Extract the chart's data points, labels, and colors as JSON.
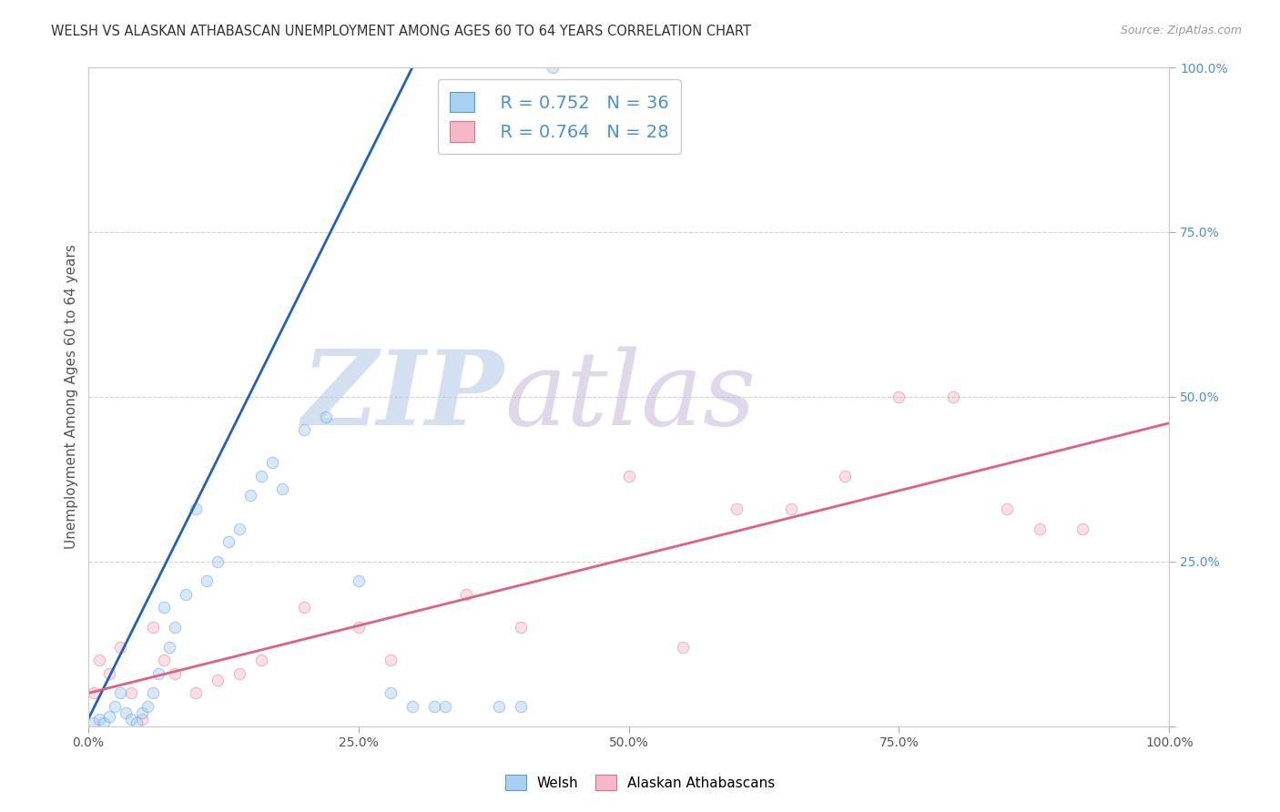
{
  "title": "WELSH VS ALASKAN ATHABASCAN UNEMPLOYMENT AMONG AGES 60 TO 64 YEARS CORRELATION CHART",
  "source": "Source: ZipAtlas.com",
  "ylabel": "Unemployment Among Ages 60 to 64 years",
  "welsh_color": "#a8d0f0",
  "welsh_edge_color": "#5b9bd5",
  "alaskan_color": "#f5b8c8",
  "alaskan_edge_color": "#e07090",
  "welsh_line_color": "#2060c0",
  "alaskan_line_color": "#e06080",
  "background_color": "#ffffff",
  "grid_color": "#cccccc",
  "tick_color_blue": "#4a90d9",
  "title_color": "#333333",
  "source_color": "#999999",
  "welsh_x": [
    0.5,
    1.0,
    1.5,
    2.0,
    2.5,
    3.0,
    3.5,
    4.0,
    4.5,
    5.0,
    5.5,
    6.0,
    6.5,
    7.0,
    7.5,
    8.0,
    9.0,
    10.0,
    11.0,
    12.0,
    13.0,
    14.0,
    15.0,
    16.0,
    17.0,
    18.0,
    20.0,
    22.0,
    25.0,
    28.0,
    30.0,
    32.0,
    33.0,
    38.0,
    40.0,
    43.0
  ],
  "welsh_y": [
    0.5,
    1.0,
    0.5,
    1.5,
    3.0,
    5.0,
    2.0,
    1.0,
    0.5,
    2.0,
    3.0,
    5.0,
    8.0,
    18.0,
    12.0,
    15.0,
    20.0,
    33.0,
    22.0,
    25.0,
    28.0,
    30.0,
    35.0,
    38.0,
    40.0,
    36.0,
    45.0,
    47.0,
    22.0,
    5.0,
    3.0,
    3.0,
    3.0,
    3.0,
    3.0,
    100.0
  ],
  "alaskan_x": [
    0.5,
    1.0,
    2.0,
    3.0,
    4.0,
    5.0,
    6.0,
    7.0,
    8.0,
    10.0,
    12.0,
    14.0,
    16.0,
    20.0,
    25.0,
    28.0,
    35.0,
    40.0,
    50.0,
    55.0,
    60.0,
    65.0,
    70.0,
    75.0,
    80.0,
    85.0,
    88.0,
    92.0
  ],
  "alaskan_y": [
    5.0,
    10.0,
    8.0,
    12.0,
    5.0,
    1.0,
    15.0,
    10.0,
    8.0,
    5.0,
    7.0,
    8.0,
    10.0,
    18.0,
    15.0,
    10.0,
    20.0,
    15.0,
    38.0,
    12.0,
    33.0,
    33.0,
    38.0,
    50.0,
    50.0,
    33.0,
    30.0,
    30.0
  ],
  "welsh_trend_x0": 0.0,
  "welsh_trend_y0": 1.0,
  "welsh_trend_x1": 30.0,
  "welsh_trend_y1": 100.0,
  "alaskan_trend_x0": 0.0,
  "alaskan_trend_y0": 5.0,
  "alaskan_trend_x1": 100.0,
  "alaskan_trend_y1": 46.0,
  "title_fontsize": 10.5,
  "label_fontsize": 11,
  "tick_fontsize": 10,
  "legend_fontsize": 14,
  "source_fontsize": 9,
  "marker_size": 80,
  "marker_alpha": 0.45,
  "xlim": [
    0,
    100
  ],
  "ylim": [
    0,
    100
  ],
  "xticks": [
    0,
    25,
    50,
    75,
    100
  ],
  "yticks": [
    0,
    25,
    50,
    75,
    100
  ],
  "xticklabels": [
    "0.0%",
    "25.0%",
    "50.0%",
    "75.0%",
    "100.0%"
  ],
  "right_yticklabels": [
    "",
    "25.0%",
    "50.0%",
    "75.0%",
    "100.0%"
  ],
  "legend_r1": "R = 0.752",
  "legend_n1": "N = 36",
  "legend_r2": "R = 0.764",
  "legend_n2": "N = 28"
}
